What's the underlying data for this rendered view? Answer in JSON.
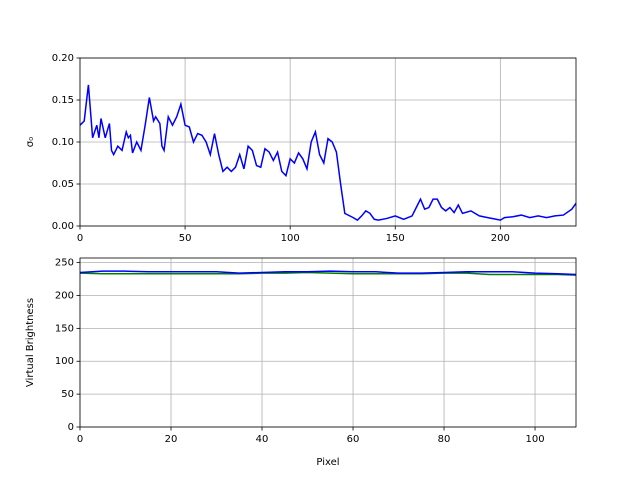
{
  "chart_data": [
    {
      "type": "line",
      "ylabel": "σ₀",
      "color": "#0000ff",
      "grid": true,
      "xlim": [
        0,
        236
      ],
      "xticks": [
        0,
        50,
        100,
        150,
        200
      ],
      "ylim": [
        0,
        0.2
      ],
      "yticks": [
        {
          "value": 0,
          "label": "0.00"
        },
        {
          "value": 0.05,
          "label": "0.05"
        },
        {
          "value": 0.1,
          "label": "0.10"
        },
        {
          "value": 0.15,
          "label": "0.15"
        },
        {
          "value": 0.2,
          "label": "0.20"
        }
      ],
      "x": [
        0,
        2,
        4,
        6,
        8,
        9,
        10,
        12,
        14,
        15,
        16,
        18,
        20,
        22,
        23,
        24,
        25,
        27,
        29,
        31,
        33,
        35,
        36,
        38,
        39,
        40,
        42,
        44,
        46,
        48,
        50,
        52,
        54,
        56,
        58,
        60,
        62,
        64,
        66,
        68,
        70,
        72,
        74,
        76,
        78,
        80,
        82,
        84,
        86,
        88,
        90,
        92,
        94,
        96,
        98,
        100,
        102,
        104,
        106,
        108,
        110,
        112,
        114,
        116,
        118,
        120,
        122,
        124,
        126,
        130,
        132,
        134,
        136,
        138,
        140,
        142,
        146,
        150,
        154,
        158,
        160,
        162,
        164,
        166,
        168,
        170,
        172,
        174,
        176,
        178,
        180,
        182,
        186,
        190,
        194,
        198,
        200,
        202,
        206,
        210,
        214,
        218,
        222,
        226,
        230,
        234,
        236
      ],
      "values": [
        0.12,
        0.125,
        0.168,
        0.105,
        0.12,
        0.105,
        0.128,
        0.105,
        0.122,
        0.09,
        0.085,
        0.095,
        0.09,
        0.112,
        0.105,
        0.108,
        0.087,
        0.1,
        0.09,
        0.12,
        0.153,
        0.125,
        0.13,
        0.122,
        0.095,
        0.09,
        0.13,
        0.12,
        0.13,
        0.145,
        0.12,
        0.118,
        0.1,
        0.11,
        0.108,
        0.1,
        0.085,
        0.11,
        0.085,
        0.065,
        0.07,
        0.065,
        0.07,
        0.085,
        0.068,
        0.095,
        0.09,
        0.072,
        0.07,
        0.092,
        0.088,
        0.078,
        0.088,
        0.065,
        0.06,
        0.08,
        0.075,
        0.087,
        0.08,
        0.068,
        0.1,
        0.112,
        0.085,
        0.075,
        0.104,
        0.1,
        0.088,
        0.05,
        0.015,
        0.01,
        0.007,
        0.012,
        0.018,
        0.015,
        0.008,
        0.007,
        0.009,
        0.012,
        0.008,
        0.012,
        0.022,
        0.032,
        0.02,
        0.022,
        0.032,
        0.032,
        0.022,
        0.018,
        0.022,
        0.016,
        0.025,
        0.015,
        0.018,
        0.012,
        0.01,
        0.008,
        0.007,
        0.01,
        0.011,
        0.013,
        0.01,
        0.012,
        0.01,
        0.012,
        0.013,
        0.02,
        0.027
      ]
    },
    {
      "type": "line",
      "xlabel": "Pixel",
      "ylabel": "Virtual Brightness",
      "grid": true,
      "xlim": [
        0,
        109
      ],
      "xticks": [
        0,
        20,
        40,
        60,
        80,
        100
      ],
      "ylim": [
        0,
        257
      ],
      "yticks": [
        0,
        50,
        100,
        150,
        200,
        250
      ],
      "x": [
        0,
        5,
        10,
        15,
        20,
        25,
        30,
        35,
        40,
        45,
        50,
        55,
        60,
        65,
        70,
        75,
        80,
        85,
        90,
        95,
        100,
        105,
        109
      ],
      "series": [
        {
          "color": "#008000",
          "values": [
            234,
            233,
            233,
            233,
            233,
            233,
            233,
            233,
            234,
            234,
            235,
            234,
            233,
            233,
            233,
            233,
            234,
            234,
            232,
            232,
            232,
            232,
            231
          ]
        },
        {
          "color": "#0000ff",
          "values": [
            235,
            237,
            237,
            236,
            236,
            236,
            236,
            234,
            235,
            236,
            236,
            237,
            236,
            236,
            234,
            234,
            235,
            236,
            236,
            236,
            234,
            233,
            232
          ]
        }
      ]
    }
  ]
}
